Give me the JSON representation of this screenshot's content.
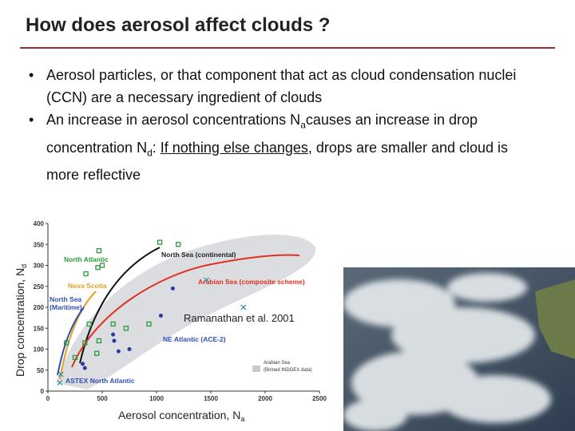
{
  "header": {
    "title": "How does aerosol affect clouds ?"
  },
  "bullets": [
    {
      "parts": [
        "Aerosol particles, or that component that act as cloud condensation nuclei (CCN) are a necessary ingredient of clouds"
      ]
    },
    {
      "parts": [
        "An increase in aerosol concentrations N",
        "a",
        "causes an increase in drop concentration N",
        "d",
        ": ",
        "If nothing else changes",
        ", drops are smaller and cloud is more reflective"
      ]
    }
  ],
  "figure": {
    "y_label": [
      "Drop concentration, N",
      "d"
    ],
    "x_label": [
      "Aerosol concentration, N",
      "a"
    ],
    "citation": "Ramanathan et al. 2001",
    "xlim": [
      0,
      2500
    ],
    "xticks": [
      0,
      500,
      1000,
      1500,
      2000,
      2500
    ],
    "ylim": [
      0,
      400
    ],
    "yticks": [
      0,
      50,
      100,
      150,
      200,
      250,
      300,
      350,
      400
    ],
    "annotations": [
      "North Atlantic",
      "North Sea (continental)",
      "Nova Scotia",
      "Arabian Sea (composite scheme)",
      "North Sea",
      "(Maritime)",
      "NE Atlantic (ACE-2)",
      "ASTEX North Atlantic",
      "Arabian Sea",
      "(Binned INDOEX data)"
    ],
    "squares": {
      "x": [
        1030,
        1200,
        470,
        500,
        460,
        350,
        380,
        600,
        720,
        930,
        170,
        340,
        470,
        250,
        450
      ],
      "y": [
        355,
        350,
        335,
        300,
        295,
        280,
        160,
        160,
        150,
        160,
        115,
        115,
        120,
        80,
        90
      ]
    },
    "dots": {
      "x": [
        1150,
        1040,
        600,
        610,
        750,
        650,
        320,
        340
      ],
      "y": [
        245,
        180,
        135,
        120,
        100,
        95,
        65,
        55
      ]
    },
    "crosses": {
      "x": [
        1460,
        1800,
        120,
        110
      ],
      "y": [
        265,
        200,
        40,
        20
      ]
    }
  }
}
